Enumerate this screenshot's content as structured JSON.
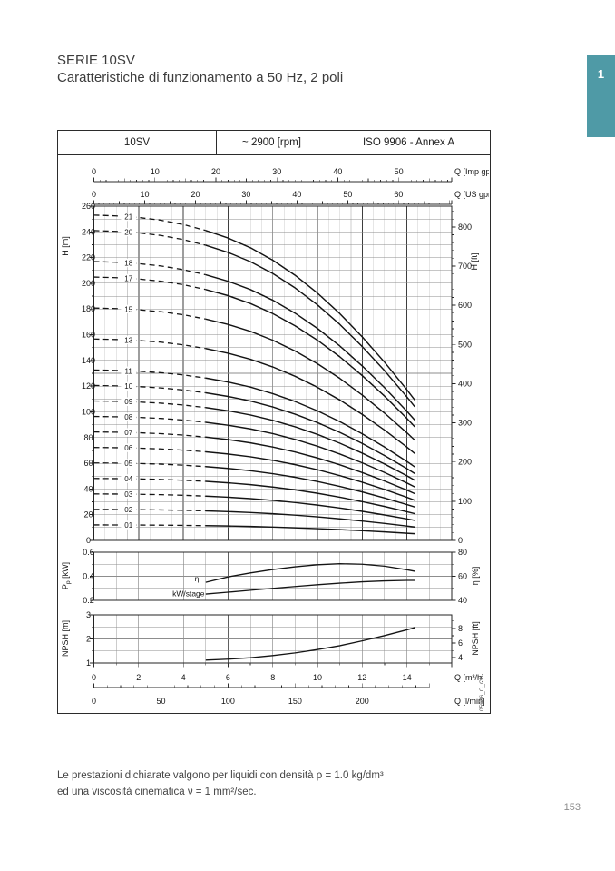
{
  "page": {
    "title": "SERIE 10SV",
    "subtitle": "Caratteristiche di funzionamento a 50 Hz, 2 poli",
    "section_tab": "1",
    "page_number": "153",
    "footer_line1": "Le prestazioni dichiarate valgono per liquidi con densità ρ = 1.0 kg/dm³",
    "footer_line2": "ed una viscosità cinematica ν = 1 mm²/sec.",
    "accent_color": "#4f9aa6"
  },
  "chart_header": {
    "model": "10SV",
    "speed": "~ 2900 [rpm]",
    "standard": "ISO 9906 - Annex A"
  },
  "chart_data": {
    "type": "line",
    "watermark": "05936_C_CH",
    "x_axes": {
      "m3h": {
        "label": "Q [m³/h]",
        "ticks": [
          0,
          2,
          4,
          6,
          8,
          10,
          12,
          14
        ],
        "max_draw": 16
      },
      "lmin": {
        "label": "Q [l/min]",
        "ticks": [
          0,
          50,
          100,
          150,
          200
        ],
        "end": 250
      },
      "imp": {
        "label": "Q [Imp gpm]",
        "ticks": [
          0,
          10,
          20,
          30,
          40,
          50
        ],
        "lmin_per_unit": 4.546
      },
      "us": {
        "label": "Q [US gpm]",
        "ticks": [
          0,
          10,
          20,
          30,
          40,
          50,
          60
        ],
        "lmin_per_unit": 3.785
      }
    },
    "head_panel": {
      "left_axis": {
        "label": "H [m]",
        "ticks": [
          0,
          20,
          40,
          60,
          80,
          100,
          120,
          140,
          160,
          180,
          200,
          220,
          240,
          260
        ],
        "min": 0,
        "max": 260,
        "minor_step": 10
      },
      "right_axis": {
        "label": "H [ft]",
        "ticks": [
          0,
          100,
          200,
          300,
          400,
          500,
          600,
          700,
          800
        ],
        "minor_step": 20,
        "m_per_ft": 0.3048
      },
      "stages": [
        "21",
        "20",
        "18",
        "17",
        "15",
        "13",
        "11",
        "10",
        "09",
        "08",
        "07",
        "06",
        "05",
        "04",
        "03",
        "02",
        "01"
      ],
      "q_samples": [
        0,
        1,
        2,
        3,
        4,
        5,
        6,
        7,
        8,
        9,
        10,
        11,
        12,
        13,
        14,
        14.35
      ],
      "per_stage_head": [
        12.05,
        12.02,
        11.96,
        11.86,
        11.7,
        11.48,
        11.2,
        10.84,
        10.38,
        9.82,
        9.16,
        8.4,
        7.54,
        6.6,
        5.58,
        5.2
      ],
      "dashed_below_q": 5,
      "label_at_q": 1.55
    },
    "power_panel": {
      "left_axis": {
        "label": "Pₚ [kW]",
        "ticks": [
          0.2,
          0.4,
          0.6
        ],
        "min": 0.2,
        "max": 0.6,
        "minor_step": 0.1
      },
      "right_axis": {
        "label": "η [%]",
        "ticks": [
          40,
          60,
          80
        ],
        "min": 40,
        "max": 80,
        "minor_step": 10
      },
      "curves": [
        {
          "name": "η",
          "axis": "right",
          "q": [
            5,
            6,
            7,
            8,
            9,
            10,
            11,
            12,
            13,
            14,
            14.35
          ],
          "values": [
            55,
            59.5,
            62.8,
            65.6,
            67.9,
            69.6,
            70.4,
            70.0,
            68.4,
            65.4,
            64.2
          ],
          "label_q": 4.7,
          "label_value": 58
        },
        {
          "name": "kW/stage",
          "axis": "left",
          "q": [
            5,
            6,
            7,
            8,
            9,
            10,
            11,
            12,
            13,
            14,
            14.35
          ],
          "values": [
            0.252,
            0.268,
            0.284,
            0.3,
            0.315,
            0.33,
            0.343,
            0.354,
            0.362,
            0.366,
            0.366
          ],
          "label_q": 4.95,
          "label_value": 0.256
        }
      ]
    },
    "npsh_panel": {
      "left_axis": {
        "label": "NPSH [m]",
        "ticks": [
          1,
          2,
          3
        ],
        "min": 1,
        "max": 3,
        "minor_step": 0.5
      },
      "right_axis": {
        "label": "NPSH [ft]",
        "ticks": [
          4,
          6,
          8
        ],
        "minor_min": 4,
        "minor_max": 9,
        "m_per_ft": 0.3048
      },
      "curve": {
        "q": [
          5,
          6,
          7,
          8,
          9,
          10,
          11,
          12,
          13,
          14,
          14.35
        ],
        "values": [
          1.12,
          1.16,
          1.22,
          1.31,
          1.42,
          1.56,
          1.72,
          1.92,
          2.14,
          2.38,
          2.47
        ]
      }
    }
  }
}
